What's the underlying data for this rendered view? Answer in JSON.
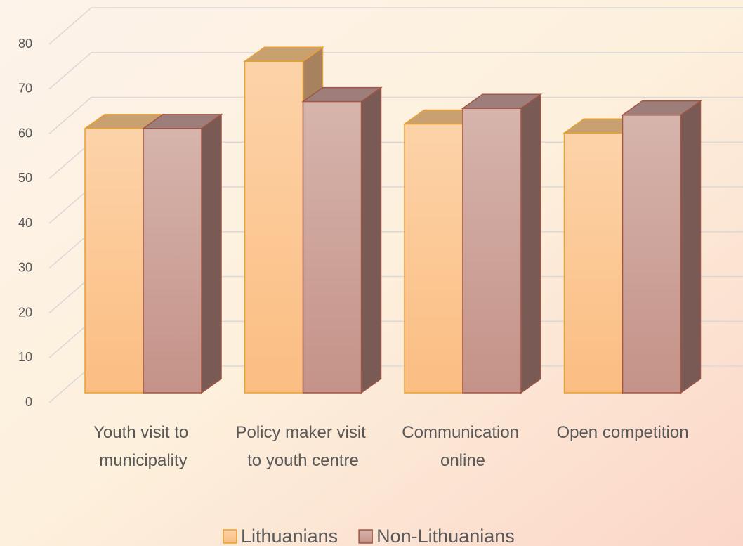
{
  "chart_data": {
    "type": "bar3d",
    "categories": [
      "Youth visit to municipality",
      "Policy maker visit to youth centre",
      "Communication online",
      "Open competition"
    ],
    "series": [
      {
        "name": "Lithuanians",
        "color": "#fbc896",
        "values": [
          59,
          74,
          60,
          58
        ]
      },
      {
        "name": "Non-Lithuanians",
        "color": "#c9a098",
        "values": [
          59,
          65,
          63.5,
          62
        ]
      }
    ],
    "ylim": [
      0,
      80
    ],
    "yticks": [
      0,
      10,
      20,
      30,
      40,
      50,
      60,
      70,
      80
    ],
    "grid": true,
    "legend": "bottom"
  }
}
